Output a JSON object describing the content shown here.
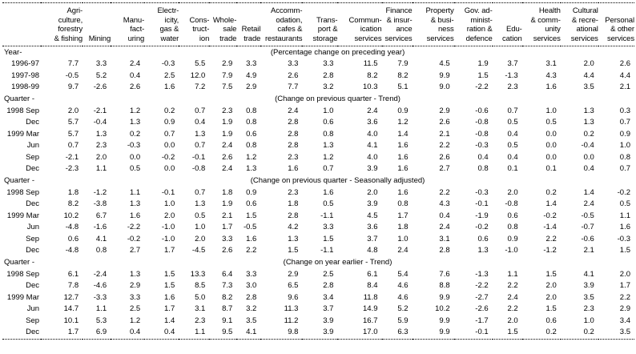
{
  "table": {
    "columns": [
      "Agri-\nculture,\nforestry\n& fishing",
      "Mining",
      "Manu-\nfact-\nuring",
      "Electr-\nicity,\ngas &\nwater",
      "Cons-\ntruct-\nion",
      "Whole-\nsale\ntrade",
      "Retail\ntrade",
      "Accomm-\nodation,\ncafes &\nrestaurants",
      "Trans-\nport &\nstorage",
      "Commun-\nication\nservices",
      "Finance\n& insur-\nance\nservices",
      "Property\n& busi-\nness\nservices",
      "Gov. ad-\nminist-\nration &\ndefence",
      "Edu-\ncation",
      "Health\n& comm-\nunity\nservices",
      "Cultural\n& recre-\national\nservices",
      "Personal\n& other\nservices"
    ],
    "sections": [
      {
        "group_label": "Year-",
        "subtitle": "(Percentage change on preceding year)",
        "rows": [
          {
            "label": "1996-97",
            "values": [
              "7.7",
              "3.3",
              "2.4",
              "-0.3",
              "5.5",
              "2.9",
              "3.3",
              "3.3",
              "3.3",
              "11.5",
              "7.9",
              "4.5",
              "1.9",
              "3.7",
              "3.1",
              "2.0",
              "2.6"
            ]
          },
          {
            "label": "1997-98",
            "values": [
              "-0.5",
              "5.2",
              "0.4",
              "2.5",
              "12.0",
              "7.9",
              "4.9",
              "2.6",
              "2.8",
              "8.2",
              "8.2",
              "9.9",
              "1.5",
              "-1.3",
              "4.3",
              "4.4",
              "4.4"
            ]
          },
          {
            "label": "1998-99",
            "values": [
              "9.7",
              "-2.6",
              "2.6",
              "1.6",
              "7.2",
              "7.5",
              "2.9",
              "7.7",
              "3.2",
              "10.3",
              "5.1",
              "9.0",
              "-2.2",
              "2.3",
              "1.6",
              "3.5",
              "2.1"
            ]
          }
        ]
      },
      {
        "group_label": "Quarter -",
        "subtitle": "(Change on previous quarter - Trend)",
        "rows": [
          {
            "label": "1998 Sep",
            "values": [
              "2.0",
              "-2.1",
              "1.2",
              "0.2",
              "0.7",
              "2.3",
              "0.8",
              "2.4",
              "1.0",
              "2.4",
              "0.9",
              "2.9",
              "-0.6",
              "0.7",
              "1.0",
              "1.3",
              "0.3"
            ]
          },
          {
            "label": "Dec",
            "values": [
              "5.7",
              "-0.4",
              "1.3",
              "0.9",
              "0.4",
              "1.9",
              "0.8",
              "2.8",
              "0.6",
              "3.6",
              "1.2",
              "2.6",
              "-0.8",
              "0.5",
              "0.5",
              "1.3",
              "0.7"
            ]
          },
          {
            "label": "1999 Mar",
            "values": [
              "5.7",
              "1.3",
              "0.2",
              "0.7",
              "1.3",
              "1.9",
              "0.6",
              "2.8",
              "0.8",
              "4.0",
              "1.4",
              "2.1",
              "-0.8",
              "0.4",
              "0.0",
              "0.2",
              "0.9"
            ]
          },
          {
            "label": "Jun",
            "values": [
              "0.7",
              "2.3",
              "-0.3",
              "0.0",
              "0.7",
              "2.4",
              "0.8",
              "2.8",
              "1.3",
              "4.1",
              "1.6",
              "2.2",
              "-0.3",
              "0.5",
              "0.0",
              "-0.4",
              "1.0"
            ]
          },
          {
            "label": "Sep",
            "values": [
              "-2.1",
              "2.0",
              "0.0",
              "-0.2",
              "-0.1",
              "2.6",
              "1.2",
              "2.3",
              "1.2",
              "4.0",
              "1.6",
              "2.6",
              "0.4",
              "0.4",
              "0.0",
              "0.0",
              "0.8"
            ]
          },
          {
            "label": "Dec",
            "values": [
              "-2.3",
              "1.1",
              "0.5",
              "0.0",
              "-0.8",
              "2.4",
              "1.3",
              "1.6",
              "0.7",
              "3.9",
              "1.6",
              "2.7",
              "0.8",
              "0.1",
              "0.1",
              "0.4",
              "0.7"
            ]
          }
        ]
      },
      {
        "group_label": "Quarter -",
        "subtitle": "(Change on previous quarter - Seasonally adjusted)",
        "rows": [
          {
            "label": "1998 Sep",
            "values": [
              "1.8",
              "-1.2",
              "1.1",
              "-0.1",
              "0.7",
              "1.8",
              "0.9",
              "2.3",
              "1.6",
              "2.0",
              "1.6",
              "2.2",
              "-0.3",
              "2.0",
              "0.2",
              "1.4",
              "-0.2"
            ]
          },
          {
            "label": "Dec",
            "values": [
              "8.2",
              "-3.8",
              "1.3",
              "1.0",
              "1.3",
              "1.9",
              "0.6",
              "1.8",
              "0.5",
              "3.9",
              "0.8",
              "4.3",
              "-0.1",
              "-0.8",
              "1.4",
              "2.4",
              "0.5"
            ]
          },
          {
            "label": "1999 Mar",
            "values": [
              "10.2",
              "6.7",
              "1.6",
              "2.0",
              "0.5",
              "2.1",
              "1.5",
              "2.8",
              "-1.1",
              "4.5",
              "1.7",
              "0.4",
              "-1.9",
              "0.6",
              "-0.2",
              "-0.5",
              "1.1"
            ]
          },
          {
            "label": "Jun",
            "values": [
              "-4.8",
              "-1.6",
              "-2.2",
              "-1.0",
              "1.0",
              "1.7",
              "-0.5",
              "4.2",
              "3.3",
              "3.6",
              "1.8",
              "2.4",
              "-0.2",
              "0.8",
              "-1.4",
              "-0.7",
              "1.6"
            ]
          },
          {
            "label": "Sep",
            "values": [
              "0.6",
              "4.1",
              "-0.2",
              "-1.0",
              "2.0",
              "3.3",
              "1.6",
              "1.3",
              "1.5",
              "3.7",
              "1.0",
              "3.1",
              "0.6",
              "0.9",
              "2.2",
              "-0.6",
              "-0.3"
            ]
          },
          {
            "label": "Dec",
            "values": [
              "-4.8",
              "0.8",
              "2.7",
              "1.7",
              "-4.5",
              "2.6",
              "2.2",
              "1.5",
              "-1.1",
              "4.8",
              "2.4",
              "2.8",
              "1.3",
              "-1.0",
              "-1.2",
              "2.1",
              "1.5"
            ]
          }
        ]
      },
      {
        "group_label": "Quarter -",
        "subtitle": "(Change on year earlier - Trend)",
        "rows": [
          {
            "label": "1998 Sep",
            "values": [
              "6.1",
              "-2.4",
              "1.3",
              "1.5",
              "13.3",
              "6.4",
              "3.3",
              "2.9",
              "2.5",
              "6.1",
              "5.4",
              "7.6",
              "-1.3",
              "1.1",
              "1.5",
              "4.1",
              "2.0"
            ]
          },
          {
            "label": "Dec",
            "values": [
              "7.8",
              "-4.6",
              "2.9",
              "1.5",
              "8.5",
              "7.3",
              "3.0",
              "6.5",
              "2.8",
              "8.4",
              "4.6",
              "8.8",
              "-2.2",
              "2.2",
              "2.0",
              "3.9",
              "1.7"
            ]
          },
          {
            "label": "1999 Mar",
            "values": [
              "12.7",
              "-3.3",
              "3.3",
              "1.6",
              "5.0",
              "8.2",
              "2.8",
              "9.6",
              "3.4",
              "11.8",
              "4.6",
              "9.9",
              "-2.7",
              "2.4",
              "2.0",
              "3.5",
              "2.2"
            ]
          },
          {
            "label": "Jun",
            "values": [
              "14.7",
              "1.1",
              "2.5",
              "1.7",
              "3.1",
              "8.7",
              "3.2",
              "11.3",
              "3.7",
              "14.9",
              "5.2",
              "10.2",
              "-2.6",
              "2.2",
              "1.5",
              "2.3",
              "2.9"
            ]
          },
          {
            "label": "Sep",
            "values": [
              "10.1",
              "5.3",
              "1.2",
              "1.4",
              "2.3",
              "9.1",
              "3.5",
              "11.2",
              "3.9",
              "16.7",
              "5.9",
              "9.9",
              "-1.7",
              "2.0",
              "0.6",
              "1.0",
              "3.4"
            ]
          },
          {
            "label": "Dec",
            "values": [
              "1.7",
              "6.9",
              "0.4",
              "0.4",
              "1.1",
              "9.5",
              "4.1",
              "9.8",
              "3.9",
              "17.0",
              "6.3",
              "9.9",
              "-0.1",
              "1.5",
              "0.2",
              "0.2",
              "3.5"
            ]
          }
        ]
      }
    ]
  }
}
